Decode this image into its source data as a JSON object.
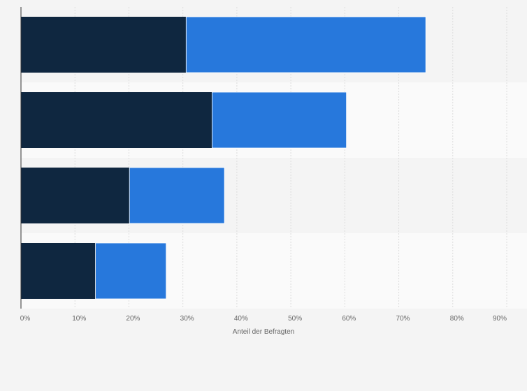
{
  "chart_data": {
    "type": "bar",
    "orientation": "horizontal",
    "stacked": true,
    "title": "",
    "xlabel": "Anteil der Befragten",
    "ylabel": "",
    "xlim": [
      0,
      90
    ],
    "x_ticks": [
      "0%",
      "10%",
      "20%",
      "30%",
      "40%",
      "50%",
      "60%",
      "70%",
      "80%",
      "90%"
    ],
    "categories": [
      "",
      "",
      "",
      ""
    ],
    "series": [
      {
        "color": "#0f2740",
        "values": [
          30.6,
          35.4,
          20.1,
          13.8
        ]
      },
      {
        "color": "#2778dc",
        "values": [
          44.4,
          24.9,
          17.6,
          13.1
        ]
      }
    ],
    "grid": true,
    "legend": "none"
  }
}
